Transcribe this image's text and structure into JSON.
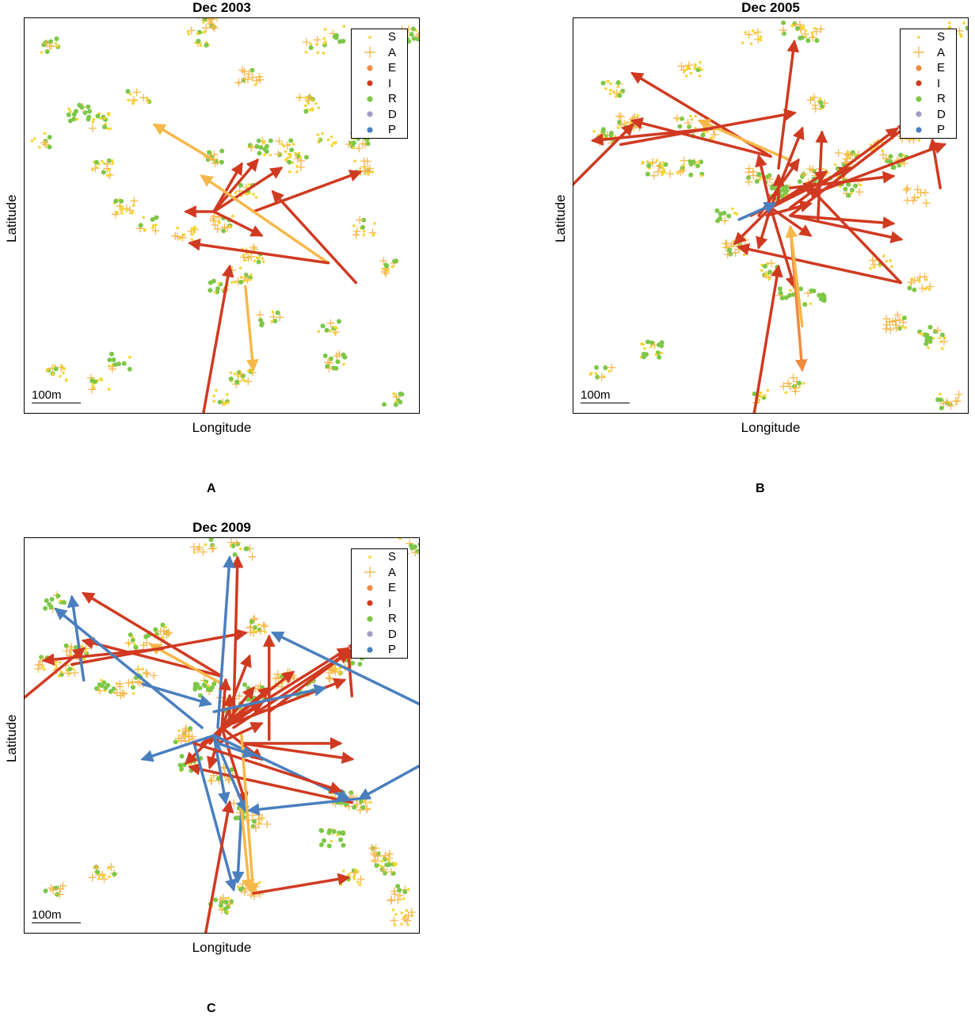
{
  "colors": {
    "S": "#f7d531",
    "A": "#f7b84a",
    "E": "#ef8a3e",
    "I": "#d03a21",
    "R": "#7dc748",
    "D": "#a59bc4",
    "P": "#4a7fbf"
  },
  "legend": [
    {
      "key": "S",
      "marker": "dot"
    },
    {
      "key": "A",
      "marker": "plus"
    },
    {
      "key": "E",
      "marker": "circle"
    },
    {
      "key": "I",
      "marker": "circle"
    },
    {
      "key": "R",
      "marker": "circle"
    },
    {
      "key": "D",
      "marker": "circle"
    },
    {
      "key": "P",
      "marker": "circle"
    }
  ],
  "chart_data": [
    {
      "type": "scatter",
      "panel": "A",
      "title": "Dec 2003",
      "xlabel": "Longitude",
      "ylabel": "Latitude",
      "scale_label": "100m",
      "legend_position": "top-right",
      "clusters": [
        [
          0.04,
          0.31,
          "S"
        ],
        [
          0.06,
          0.07,
          "R"
        ],
        [
          0.14,
          0.24,
          "R"
        ],
        [
          0.19,
          0.26,
          "S"
        ],
        [
          0.2,
          0.38,
          "S"
        ],
        [
          0.25,
          0.48,
          "S"
        ],
        [
          0.29,
          0.2,
          "S"
        ],
        [
          0.32,
          0.52,
          "S"
        ],
        [
          0.44,
          0.05,
          "S"
        ],
        [
          0.46,
          0.01,
          "A"
        ],
        [
          0.48,
          0.35,
          "R"
        ],
        [
          0.5,
          0.52,
          "A"
        ],
        [
          0.56,
          0.44,
          "S"
        ],
        [
          0.57,
          0.15,
          "A"
        ],
        [
          0.62,
          0.76,
          "R"
        ],
        [
          0.58,
          0.6,
          "S"
        ],
        [
          0.6,
          0.33,
          "R"
        ],
        [
          0.69,
          0.37,
          "S"
        ],
        [
          0.72,
          0.22,
          "S"
        ],
        [
          0.79,
          0.04,
          "R"
        ],
        [
          0.74,
          0.07,
          "S"
        ],
        [
          0.77,
          0.31,
          "S"
        ],
        [
          0.85,
          0.31,
          "R"
        ],
        [
          0.86,
          0.38,
          "A"
        ],
        [
          0.86,
          0.53,
          "S"
        ],
        [
          0.92,
          0.63,
          "R"
        ],
        [
          0.77,
          0.78,
          "S"
        ],
        [
          0.79,
          0.87,
          "R"
        ],
        [
          0.67,
          0.33,
          "S"
        ],
        [
          0.55,
          0.91,
          "S"
        ],
        [
          0.49,
          0.96,
          "S"
        ],
        [
          0.24,
          0.87,
          "R"
        ],
        [
          0.19,
          0.93,
          "S"
        ],
        [
          0.08,
          0.9,
          "S"
        ],
        [
          0.93,
          0.96,
          "R"
        ],
        [
          0.98,
          0.04,
          "A"
        ],
        [
          0.49,
          0.68,
          "R"
        ],
        [
          0.55,
          0.65,
          "S"
        ],
        [
          0.41,
          0.55,
          "S"
        ]
      ],
      "arrows": [
        [
          0.48,
          0.36,
          0.33,
          0.27,
          "A"
        ],
        [
          0.58,
          0.49,
          0.85,
          0.39,
          "I"
        ],
        [
          0.48,
          0.49,
          0.41,
          0.49,
          "I"
        ],
        [
          0.48,
          0.49,
          0.59,
          0.36,
          "I"
        ],
        [
          0.48,
          0.49,
          0.65,
          0.38,
          "I"
        ],
        [
          0.48,
          0.49,
          0.6,
          0.55,
          "I"
        ],
        [
          0.48,
          0.49,
          0.55,
          0.37,
          "I"
        ],
        [
          0.77,
          0.62,
          0.45,
          0.4,
          "A"
        ],
        [
          0.84,
          0.67,
          0.63,
          0.44,
          "I"
        ],
        [
          0.77,
          0.62,
          0.42,
          0.57,
          "I"
        ],
        [
          0.45,
          1.02,
          0.52,
          0.63,
          "I"
        ],
        [
          0.56,
          0.68,
          0.58,
          0.89,
          "A"
        ]
      ]
    },
    {
      "type": "scatter",
      "panel": "B",
      "title": "Dec 2005",
      "xlabel": "Longitude",
      "ylabel": "Latitude",
      "scale_label": "100m",
      "legend_position": "top-right",
      "clusters": [
        [
          0.1,
          0.18,
          "S"
        ],
        [
          0.08,
          0.3,
          "R"
        ],
        [
          0.14,
          0.26,
          "A"
        ],
        [
          0.2,
          0.38,
          "S"
        ],
        [
          0.25,
          0.38,
          "S"
        ],
        [
          0.3,
          0.38,
          "R"
        ],
        [
          0.29,
          0.26,
          "S"
        ],
        [
          0.45,
          0.05,
          "S"
        ],
        [
          0.55,
          0.03,
          "A"
        ],
        [
          0.6,
          0.04,
          "S"
        ],
        [
          0.61,
          0.22,
          "R"
        ],
        [
          0.47,
          0.4,
          "A"
        ],
        [
          0.52,
          0.44,
          "R"
        ],
        [
          0.6,
          0.4,
          "R"
        ],
        [
          0.66,
          0.39,
          "S"
        ],
        [
          0.7,
          0.36,
          "A"
        ],
        [
          0.7,
          0.43,
          "R"
        ],
        [
          0.78,
          0.33,
          "S"
        ],
        [
          0.82,
          0.36,
          "R"
        ],
        [
          0.86,
          0.29,
          "A"
        ],
        [
          0.87,
          0.45,
          "A"
        ],
        [
          0.39,
          0.5,
          "R"
        ],
        [
          0.41,
          0.58,
          "A"
        ],
        [
          0.5,
          0.64,
          "S"
        ],
        [
          0.55,
          0.69,
          "R"
        ],
        [
          0.61,
          0.71,
          "R"
        ],
        [
          0.78,
          0.62,
          "S"
        ],
        [
          0.88,
          0.67,
          "S"
        ],
        [
          0.9,
          0.8,
          "S"
        ],
        [
          0.92,
          0.82,
          "R"
        ],
        [
          0.82,
          0.77,
          "A"
        ],
        [
          0.56,
          0.93,
          "A"
        ],
        [
          0.48,
          0.96,
          "S"
        ],
        [
          0.2,
          0.84,
          "R"
        ],
        [
          0.07,
          0.89,
          "S"
        ],
        [
          0.95,
          0.97,
          "A"
        ],
        [
          0.98,
          0.03,
          "S"
        ],
        [
          0.3,
          0.13,
          "S"
        ],
        [
          0.33,
          0.29,
          "S"
        ]
      ],
      "arrows": [
        [
          0.5,
          0.35,
          0.15,
          0.26,
          "I"
        ],
        [
          0.5,
          0.35,
          0.15,
          0.14,
          "I"
        ],
        [
          0.55,
          0.36,
          0.32,
          0.26,
          "A"
        ],
        [
          0.35,
          0.28,
          0.05,
          0.31,
          "I"
        ],
        [
          0.12,
          0.32,
          0.56,
          0.24,
          "I"
        ],
        [
          0.52,
          0.38,
          0.56,
          0.06,
          "I"
        ],
        [
          0.55,
          0.43,
          0.81,
          0.4,
          "I"
        ],
        [
          0.55,
          0.48,
          0.82,
          0.28,
          "I"
        ],
        [
          0.55,
          0.5,
          0.85,
          0.27,
          "I"
        ],
        [
          0.5,
          0.48,
          0.58,
          0.28,
          "I"
        ],
        [
          0.5,
          0.48,
          0.47,
          0.35,
          "I"
        ],
        [
          0.5,
          0.48,
          0.7,
          0.38,
          "I"
        ],
        [
          0.5,
          0.48,
          0.64,
          0.39,
          "I"
        ],
        [
          0.5,
          0.48,
          0.47,
          0.58,
          "I"
        ],
        [
          0.5,
          0.48,
          0.41,
          0.57,
          "I"
        ],
        [
          0.5,
          0.48,
          0.56,
          0.68,
          "I"
        ],
        [
          0.5,
          0.48,
          0.6,
          0.55,
          "I"
        ],
        [
          0.83,
          0.67,
          0.42,
          0.58,
          "I"
        ],
        [
          0.47,
          0.5,
          0.57,
          0.36,
          "I"
        ],
        [
          0.45,
          0.5,
          0.61,
          0.42,
          "I"
        ],
        [
          0.49,
          0.5,
          0.6,
          0.47,
          "I"
        ],
        [
          0.55,
          0.5,
          0.81,
          0.52,
          "I"
        ],
        [
          0.55,
          0.5,
          0.83,
          0.56,
          "I"
        ],
        [
          0.52,
          0.47,
          0.52,
          0.4,
          "I"
        ],
        [
          0.93,
          0.43,
          0.91,
          0.31,
          "I"
        ],
        [
          0.62,
          0.44,
          0.94,
          0.32,
          "I"
        ],
        [
          0.62,
          0.51,
          0.63,
          0.29,
          "I"
        ],
        [
          0.42,
          0.51,
          0.51,
          0.47,
          "P"
        ],
        [
          0.55,
          0.53,
          0.58,
          0.89,
          "E"
        ],
        [
          0.58,
          0.78,
          0.55,
          0.53,
          "A"
        ],
        [
          0.45,
          1.05,
          0.52,
          0.63,
          "I"
        ],
        [
          0.83,
          0.67,
          0.6,
          0.43,
          "I"
        ],
        [
          -0.02,
          0.44,
          0.15,
          0.27,
          "I"
        ]
      ]
    },
    {
      "type": "scatter",
      "panel": "C",
      "title": "Dec 2009",
      "xlabel": "Longitude",
      "ylabel": "Latitude",
      "scale_label": "100m",
      "legend_position": "top-right",
      "clusters": [
        [
          0.08,
          0.16,
          "R"
        ],
        [
          0.13,
          0.29,
          "A"
        ],
        [
          0.2,
          0.37,
          "R"
        ],
        [
          0.25,
          0.38,
          "A"
        ],
        [
          0.29,
          0.26,
          "R"
        ],
        [
          0.35,
          0.24,
          "A"
        ],
        [
          0.45,
          0.02,
          "A"
        ],
        [
          0.55,
          0.03,
          "R"
        ],
        [
          0.59,
          0.22,
          "A"
        ],
        [
          0.46,
          0.38,
          "R"
        ],
        [
          0.52,
          0.42,
          "A"
        ],
        [
          0.58,
          0.39,
          "R"
        ],
        [
          0.66,
          0.36,
          "A"
        ],
        [
          0.72,
          0.38,
          "R"
        ],
        [
          0.8,
          0.34,
          "A"
        ],
        [
          0.83,
          0.3,
          "R"
        ],
        [
          0.4,
          0.5,
          "A"
        ],
        [
          0.42,
          0.57,
          "R"
        ],
        [
          0.5,
          0.6,
          "A"
        ],
        [
          0.55,
          0.69,
          "R"
        ],
        [
          0.59,
          0.72,
          "A"
        ],
        [
          0.8,
          0.66,
          "R"
        ],
        [
          0.85,
          0.67,
          "A"
        ],
        [
          0.78,
          0.76,
          "R"
        ],
        [
          0.9,
          0.8,
          "A"
        ],
        [
          0.92,
          0.83,
          "R"
        ],
        [
          0.83,
          0.86,
          "S"
        ],
        [
          0.57,
          0.89,
          "A"
        ],
        [
          0.5,
          0.93,
          "R"
        ],
        [
          0.2,
          0.85,
          "S"
        ],
        [
          0.08,
          0.89,
          "A"
        ],
        [
          0.96,
          0.96,
          "S"
        ],
        [
          0.98,
          0.02,
          "R"
        ],
        [
          0.06,
          0.32,
          "A"
        ],
        [
          0.1,
          0.33,
          "S"
        ],
        [
          0.3,
          0.35,
          "A"
        ],
        [
          0.95,
          0.9,
          "A"
        ]
      ],
      "arrows": [
        [
          0.5,
          0.35,
          0.15,
          0.26,
          "I"
        ],
        [
          0.5,
          0.35,
          0.15,
          0.14,
          "I"
        ],
        [
          0.52,
          0.38,
          0.32,
          0.27,
          "A"
        ],
        [
          0.35,
          0.28,
          0.05,
          0.31,
          "I"
        ],
        [
          0.12,
          0.32,
          0.56,
          0.24,
          "I"
        ],
        [
          0.53,
          0.45,
          0.54,
          0.05,
          "I"
        ],
        [
          0.49,
          0.48,
          0.52,
          0.05,
          "P"
        ],
        [
          0.5,
          0.48,
          0.81,
          0.36,
          "I"
        ],
        [
          0.5,
          0.48,
          0.82,
          0.28,
          "I"
        ],
        [
          0.53,
          0.48,
          0.85,
          0.27,
          "I"
        ],
        [
          0.5,
          0.48,
          0.57,
          0.3,
          "I"
        ],
        [
          0.5,
          0.48,
          0.51,
          0.36,
          "I"
        ],
        [
          0.5,
          0.48,
          0.68,
          0.34,
          "I"
        ],
        [
          0.5,
          0.48,
          0.62,
          0.38,
          "I"
        ],
        [
          0.5,
          0.48,
          0.47,
          0.58,
          "I"
        ],
        [
          0.5,
          0.48,
          0.41,
          0.57,
          "I"
        ],
        [
          0.5,
          0.48,
          0.56,
          0.67,
          "I"
        ],
        [
          0.5,
          0.48,
          0.6,
          0.56,
          "I"
        ],
        [
          0.83,
          0.67,
          0.42,
          0.58,
          "I"
        ],
        [
          0.47,
          0.52,
          0.58,
          0.38,
          "I"
        ],
        [
          0.45,
          0.52,
          0.6,
          0.42,
          "I"
        ],
        [
          0.49,
          0.52,
          0.6,
          0.47,
          "I"
        ],
        [
          0.55,
          0.52,
          0.8,
          0.52,
          "I"
        ],
        [
          0.55,
          0.52,
          0.83,
          0.56,
          "I"
        ],
        [
          0.52,
          0.47,
          0.52,
          0.4,
          "I"
        ],
        [
          0.83,
          0.4,
          0.82,
          0.28,
          "I"
        ],
        [
          0.62,
          0.44,
          0.82,
          0.29,
          "I"
        ],
        [
          0.62,
          0.51,
          0.62,
          0.25,
          "I"
        ],
        [
          0.45,
          0.48,
          0.08,
          0.18,
          "P"
        ],
        [
          0.15,
          0.36,
          0.12,
          0.15,
          "P"
        ],
        [
          0.48,
          0.5,
          0.3,
          0.56,
          "P"
        ],
        [
          0.48,
          0.5,
          0.82,
          0.66,
          "P"
        ],
        [
          0.48,
          0.5,
          0.56,
          0.69,
          "P"
        ],
        [
          0.48,
          0.5,
          0.51,
          0.67,
          "P"
        ],
        [
          1.0,
          0.42,
          0.63,
          0.24,
          "P"
        ],
        [
          1.05,
          0.55,
          0.85,
          0.66,
          "P"
        ],
        [
          0.85,
          0.66,
          0.57,
          0.69,
          "P"
        ],
        [
          0.43,
          0.52,
          0.53,
          0.89,
          "P"
        ],
        [
          0.55,
          0.69,
          0.54,
          0.87,
          "P"
        ],
        [
          0.43,
          0.52,
          0.8,
          0.64,
          "I"
        ],
        [
          0.55,
          0.69,
          0.57,
          0.89,
          "A"
        ],
        [
          0.55,
          0.5,
          0.58,
          0.9,
          "A"
        ],
        [
          0.58,
          0.9,
          0.82,
          0.86,
          "I"
        ],
        [
          0.45,
          1.05,
          0.52,
          0.67,
          "I"
        ],
        [
          0.3,
          0.37,
          0.47,
          0.42,
          "P"
        ],
        [
          0.49,
          0.52,
          0.58,
          0.55,
          "P"
        ],
        [
          0.48,
          0.44,
          0.76,
          0.38,
          "P"
        ],
        [
          -0.02,
          0.42,
          0.15,
          0.28,
          "I"
        ]
      ]
    }
  ]
}
